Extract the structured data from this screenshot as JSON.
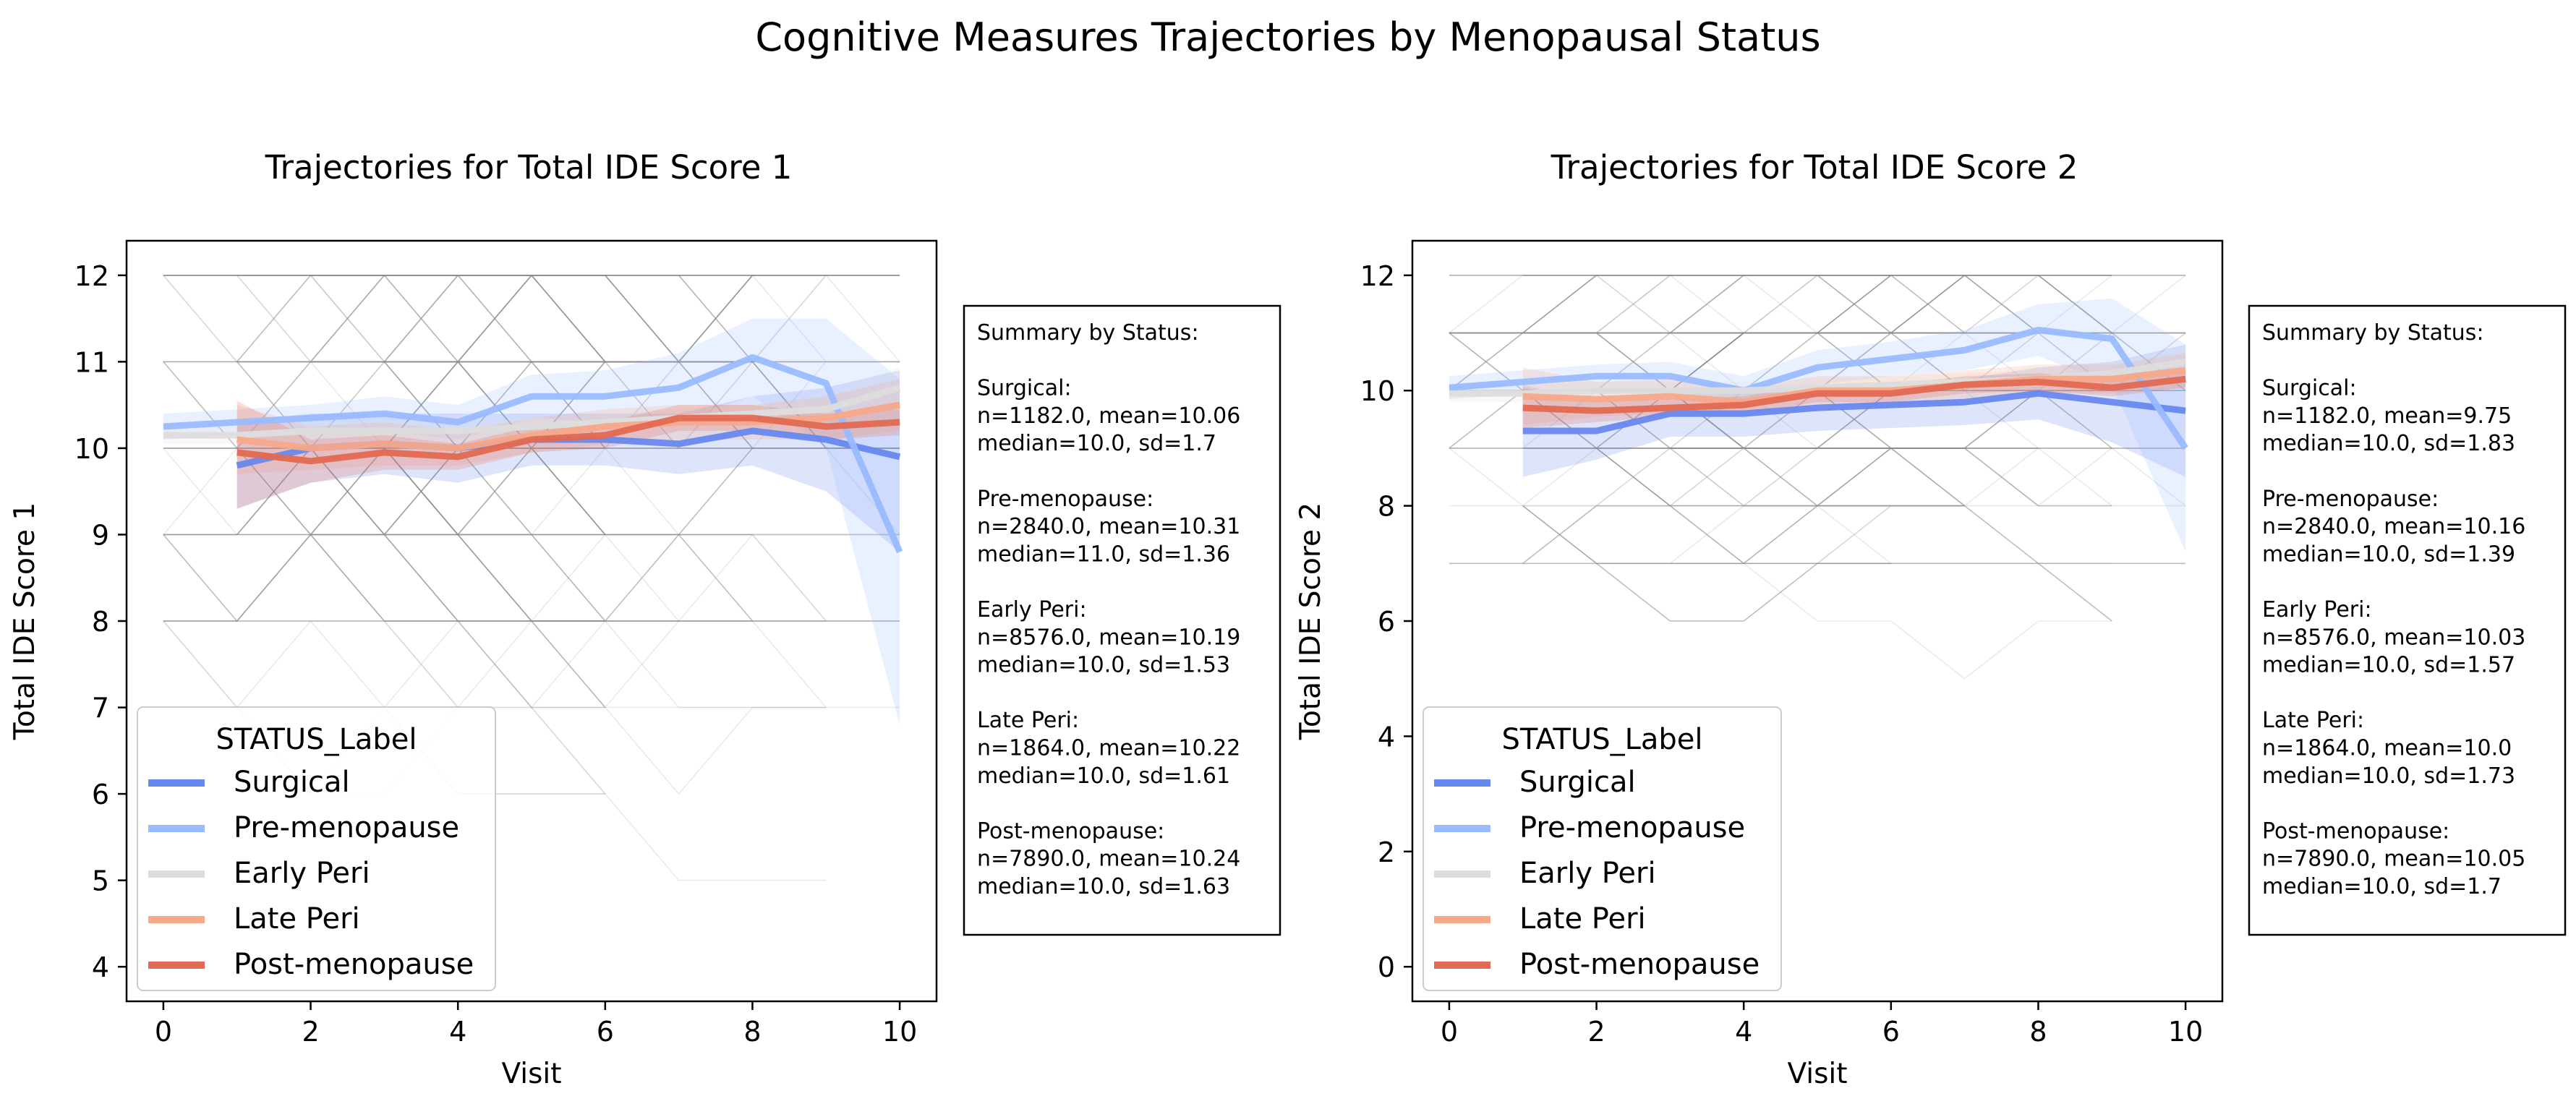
{
  "figure": {
    "title": "Cognitive Measures Trajectories by Menopausal Status"
  },
  "colors": {
    "Surgical": "#6788ee",
    "Pre-menopause": "#9abbff",
    "Early Peri": "#dddddd",
    "Late Peri": "#f7a889",
    "Post-menopause": "#e26952",
    "individual_lines": "#888888"
  },
  "legend": {
    "title": "STATUS_Label",
    "entries": [
      "Surgical",
      "Pre-menopause",
      "Early Peri",
      "Late Peri",
      "Post-menopause"
    ]
  },
  "chart_data": [
    {
      "type": "line",
      "title": "Trajectories for Total IDE Score 1",
      "xlabel": "Visit",
      "ylabel": "Total IDE Score 1",
      "xlim": [
        -0.5,
        10.5
      ],
      "ylim": [
        3.6,
        12.4
      ],
      "xticks": [
        0,
        2,
        4,
        6,
        8,
        10
      ],
      "yticks": [
        4,
        5,
        6,
        7,
        8,
        9,
        10,
        11,
        12
      ],
      "legend_position": "lower left",
      "grid": false,
      "series": [
        {
          "name": "Surgical",
          "x": [
            1,
            2,
            3,
            4,
            5,
            6,
            7,
            8,
            9,
            10
          ],
          "y": [
            9.8,
            10.0,
            10.05,
            10.0,
            10.1,
            10.1,
            10.05,
            10.2,
            10.1,
            9.9
          ],
          "lower": [
            9.3,
            9.6,
            9.7,
            9.6,
            9.8,
            9.8,
            9.7,
            9.8,
            9.5,
            8.8
          ],
          "upper": [
            10.3,
            10.4,
            10.4,
            10.4,
            10.4,
            10.4,
            10.4,
            10.6,
            10.7,
            10.9
          ]
        },
        {
          "name": "Pre-menopause",
          "x": [
            0,
            1,
            2,
            3,
            4,
            5,
            6,
            7,
            8,
            9,
            10
          ],
          "y": [
            10.25,
            10.3,
            10.35,
            10.4,
            10.3,
            10.6,
            10.6,
            10.7,
            11.05,
            10.75,
            8.8
          ],
          "lower": [
            10.1,
            10.15,
            10.2,
            10.2,
            10.1,
            10.35,
            10.3,
            10.3,
            10.6,
            10.0,
            6.8
          ],
          "upper": [
            10.4,
            10.45,
            10.5,
            10.6,
            10.5,
            10.85,
            10.9,
            11.1,
            11.5,
            11.5,
            10.8
          ]
        },
        {
          "name": "Early Peri",
          "x": [
            0,
            1,
            2,
            3,
            4,
            5,
            6,
            7,
            8,
            9,
            10
          ],
          "y": [
            10.15,
            10.15,
            10.2,
            10.2,
            10.2,
            10.25,
            10.3,
            10.35,
            10.4,
            10.45,
            10.7
          ],
          "lower": [
            10.05,
            10.05,
            10.1,
            10.1,
            10.1,
            10.15,
            10.2,
            10.25,
            10.3,
            10.3,
            10.45
          ],
          "upper": [
            10.25,
            10.25,
            10.3,
            10.3,
            10.3,
            10.35,
            10.4,
            10.45,
            10.5,
            10.6,
            10.95
          ]
        },
        {
          "name": "Late Peri",
          "x": [
            1,
            2,
            3,
            4,
            5,
            6,
            7,
            8,
            9,
            10
          ],
          "y": [
            10.1,
            10.0,
            10.05,
            10.0,
            10.15,
            10.25,
            10.3,
            10.3,
            10.35,
            10.5
          ],
          "lower": [
            9.7,
            9.75,
            9.8,
            9.8,
            9.95,
            10.05,
            10.1,
            10.1,
            10.1,
            10.2
          ],
          "upper": [
            10.5,
            10.25,
            10.3,
            10.2,
            10.35,
            10.45,
            10.5,
            10.5,
            10.6,
            10.8
          ]
        },
        {
          "name": "Post-menopause",
          "x": [
            1,
            2,
            3,
            4,
            5,
            6,
            7,
            8,
            9,
            10
          ],
          "y": [
            9.95,
            9.85,
            9.95,
            9.9,
            10.1,
            10.15,
            10.35,
            10.35,
            10.25,
            10.3
          ],
          "lower": [
            9.3,
            9.6,
            9.75,
            9.75,
            9.95,
            10.0,
            10.2,
            10.2,
            10.1,
            10.15
          ],
          "upper": [
            10.55,
            10.1,
            10.15,
            10.05,
            10.25,
            10.3,
            10.5,
            10.5,
            10.4,
            10.45
          ]
        }
      ],
      "summary": {
        "title": "Summary by Status:",
        "groups": [
          {
            "name": "Surgical:",
            "line1": "n=1182.0, mean=10.06",
            "line2": "median=10.0, sd=1.7"
          },
          {
            "name": "Pre-menopause:",
            "line1": "n=2840.0, mean=10.31",
            "line2": "median=11.0, sd=1.36"
          },
          {
            "name": "Early Peri:",
            "line1": "n=8576.0, mean=10.19",
            "line2": "median=10.0, sd=1.53"
          },
          {
            "name": "Late Peri:",
            "line1": "n=1864.0, mean=10.22",
            "line2": "median=10.0, sd=1.61"
          },
          {
            "name": "Post-menopause:",
            "line1": "n=7890.0, mean=10.24",
            "line2": "median=10.0, sd=1.63"
          }
        ]
      }
    },
    {
      "type": "line",
      "title": "Trajectories for Total IDE Score 2",
      "xlabel": "Visit",
      "ylabel": "Total IDE Score 2",
      "xlim": [
        -0.5,
        10.5
      ],
      "ylim": [
        -0.6,
        12.6
      ],
      "xticks": [
        0,
        2,
        4,
        6,
        8,
        10
      ],
      "yticks": [
        0,
        2,
        4,
        6,
        8,
        10,
        12
      ],
      "legend_position": "lower left",
      "grid": false,
      "series": [
        {
          "name": "Surgical",
          "x": [
            1,
            2,
            3,
            4,
            5,
            6,
            7,
            8,
            9,
            10
          ],
          "y": [
            9.3,
            9.3,
            9.6,
            9.6,
            9.7,
            9.75,
            9.8,
            9.95,
            9.8,
            9.65
          ],
          "lower": [
            8.5,
            8.8,
            9.2,
            9.2,
            9.3,
            9.35,
            9.4,
            9.5,
            9.1,
            8.5
          ],
          "upper": [
            10.1,
            9.8,
            10.0,
            10.0,
            10.1,
            10.15,
            10.2,
            10.4,
            10.5,
            10.8
          ]
        },
        {
          "name": "Pre-menopause",
          "x": [
            0,
            1,
            2,
            3,
            4,
            5,
            6,
            7,
            8,
            9,
            10
          ],
          "y": [
            10.05,
            10.15,
            10.25,
            10.25,
            10.0,
            10.4,
            10.55,
            10.7,
            11.05,
            10.9,
            9.0
          ],
          "lower": [
            9.85,
            9.95,
            10.05,
            10.0,
            9.75,
            10.1,
            10.25,
            10.35,
            10.6,
            10.1,
            7.2
          ],
          "upper": [
            10.25,
            10.35,
            10.45,
            10.5,
            10.25,
            10.7,
            10.85,
            11.05,
            11.5,
            11.6,
            10.8
          ]
        },
        {
          "name": "Early Peri",
          "x": [
            0,
            1,
            2,
            3,
            4,
            5,
            6,
            7,
            8,
            9,
            10
          ],
          "y": [
            9.95,
            9.95,
            10.0,
            10.0,
            10.0,
            10.05,
            10.1,
            10.15,
            10.2,
            10.3,
            10.5
          ],
          "lower": [
            9.8,
            9.8,
            9.85,
            9.85,
            9.85,
            9.9,
            9.95,
            10.0,
            10.05,
            10.1,
            10.25
          ],
          "upper": [
            10.1,
            10.1,
            10.15,
            10.15,
            10.15,
            10.2,
            10.25,
            10.3,
            10.35,
            10.5,
            10.75
          ]
        },
        {
          "name": "Late Peri",
          "x": [
            1,
            2,
            3,
            4,
            5,
            6,
            7,
            8,
            9,
            10
          ],
          "y": [
            9.9,
            9.85,
            9.9,
            9.8,
            10.0,
            10.0,
            10.1,
            10.2,
            10.2,
            10.35
          ],
          "lower": [
            9.4,
            9.55,
            9.6,
            9.55,
            9.75,
            9.75,
            9.85,
            9.95,
            9.95,
            10.05
          ],
          "upper": [
            10.4,
            10.15,
            10.2,
            10.05,
            10.25,
            10.25,
            10.35,
            10.45,
            10.45,
            10.65
          ]
        },
        {
          "name": "Post-menopause",
          "x": [
            1,
            2,
            3,
            4,
            5,
            6,
            7,
            8,
            9,
            10
          ],
          "y": [
            9.7,
            9.65,
            9.7,
            9.75,
            9.95,
            9.95,
            10.1,
            10.15,
            10.05,
            10.2
          ],
          "lower": [
            9.35,
            9.45,
            9.55,
            9.6,
            9.8,
            9.8,
            9.95,
            10.0,
            9.9,
            10.05
          ],
          "upper": [
            10.05,
            9.85,
            9.85,
            9.9,
            10.1,
            10.1,
            10.25,
            10.3,
            10.2,
            10.35
          ]
        }
      ],
      "summary": {
        "title": "Summary by Status:",
        "groups": [
          {
            "name": "Surgical:",
            "line1": "n=1182.0, mean=9.75",
            "line2": "median=10.0, sd=1.83"
          },
          {
            "name": "Pre-menopause:",
            "line1": "n=2840.0, mean=10.16",
            "line2": "median=10.0, sd=1.39"
          },
          {
            "name": "Early Peri:",
            "line1": "n=8576.0, mean=10.03",
            "line2": "median=10.0, sd=1.57"
          },
          {
            "name": "Late Peri:",
            "line1": "n=1864.0, mean=10.0",
            "line2": "median=10.0, sd=1.73"
          },
          {
            "name": "Post-menopause:",
            "line1": "n=7890.0, mean=10.05",
            "line2": "median=10.0, sd=1.7"
          }
        ]
      }
    }
  ]
}
